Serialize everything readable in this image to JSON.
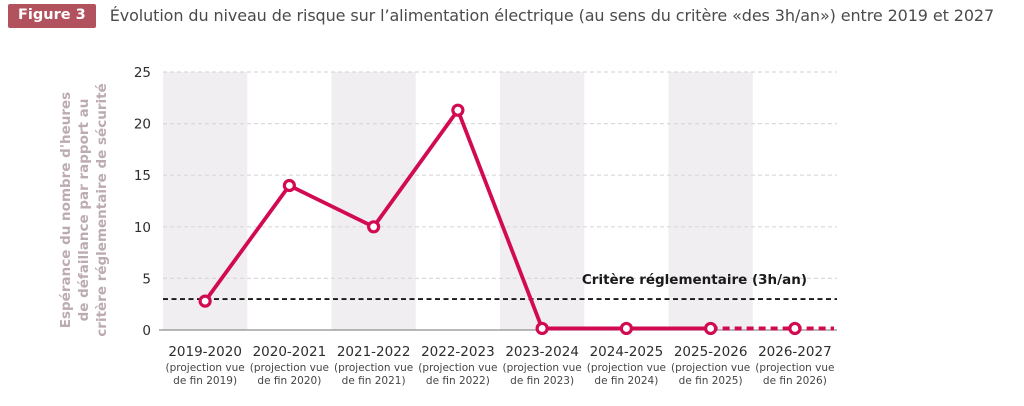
{
  "header": {
    "badge": "Figure 3",
    "title": "Évolution du niveau de risque sur l’alimentation électrique (au sens du critère «des 3h/an») entre 2019 et 2027"
  },
  "y_axis": {
    "title_lines": [
      "Espérance du nombre d'heures",
      "de défaillance par rapport au",
      "critère réglementaire de sécurité"
    ]
  },
  "chart_data": {
    "type": "line",
    "title": "Évolution du niveau de risque sur l’alimentation électrique (au sens du critère «des 3h/an») entre 2019 et 2027",
    "categories": [
      "2019-2020",
      "2020-2021",
      "2021-2022",
      "2022-2023",
      "2023-2024",
      "2024-2025",
      "2025-2026",
      "2026-2027"
    ],
    "category_sublabels": [
      [
        "(projection vue",
        "de fin 2019)"
      ],
      [
        "(projection vue",
        "de fin 2020)"
      ],
      [
        "(projection vue",
        "de fin 2021)"
      ],
      [
        "(projection vue",
        "de fin 2022)"
      ],
      [
        "(projection vue",
        "de fin 2023)"
      ],
      [
        "(projection vue",
        "de fin 2024)"
      ],
      [
        "(projection vue",
        "de fin 2025)"
      ],
      [
        "(projection vue",
        "de fin 2026)"
      ]
    ],
    "values": [
      2.8,
      14,
      10,
      21.3,
      0.15,
      0.15,
      0.15,
      0.15
    ],
    "dashed_from_index": 6,
    "ylim": [
      0,
      25
    ],
    "yticks": [
      0,
      5,
      10,
      15,
      20,
      25
    ],
    "ylabel": "Espérance du nombre d'heures de défaillance par rapport au critère réglementaire de sécurité",
    "xlabel": "",
    "grid": "horizontal-dashed",
    "legend_position": "none",
    "reference_line": {
      "value": 3,
      "label": "Critère réglementaire (3h/an)"
    },
    "colors": {
      "series": "#d20a51",
      "marker_fill": "#ffffff",
      "band": "#f0eef0",
      "gridline": "#d9d9d9",
      "axis": "#8f8f8f",
      "reference": "#1a1a1a",
      "badge_bg": "#b2525f",
      "title_text": "#4b4b4b",
      "y_axis_title_text": "#bcabb0",
      "tick_text": "#2e2e2e",
      "subtick_text": "#454545"
    }
  }
}
